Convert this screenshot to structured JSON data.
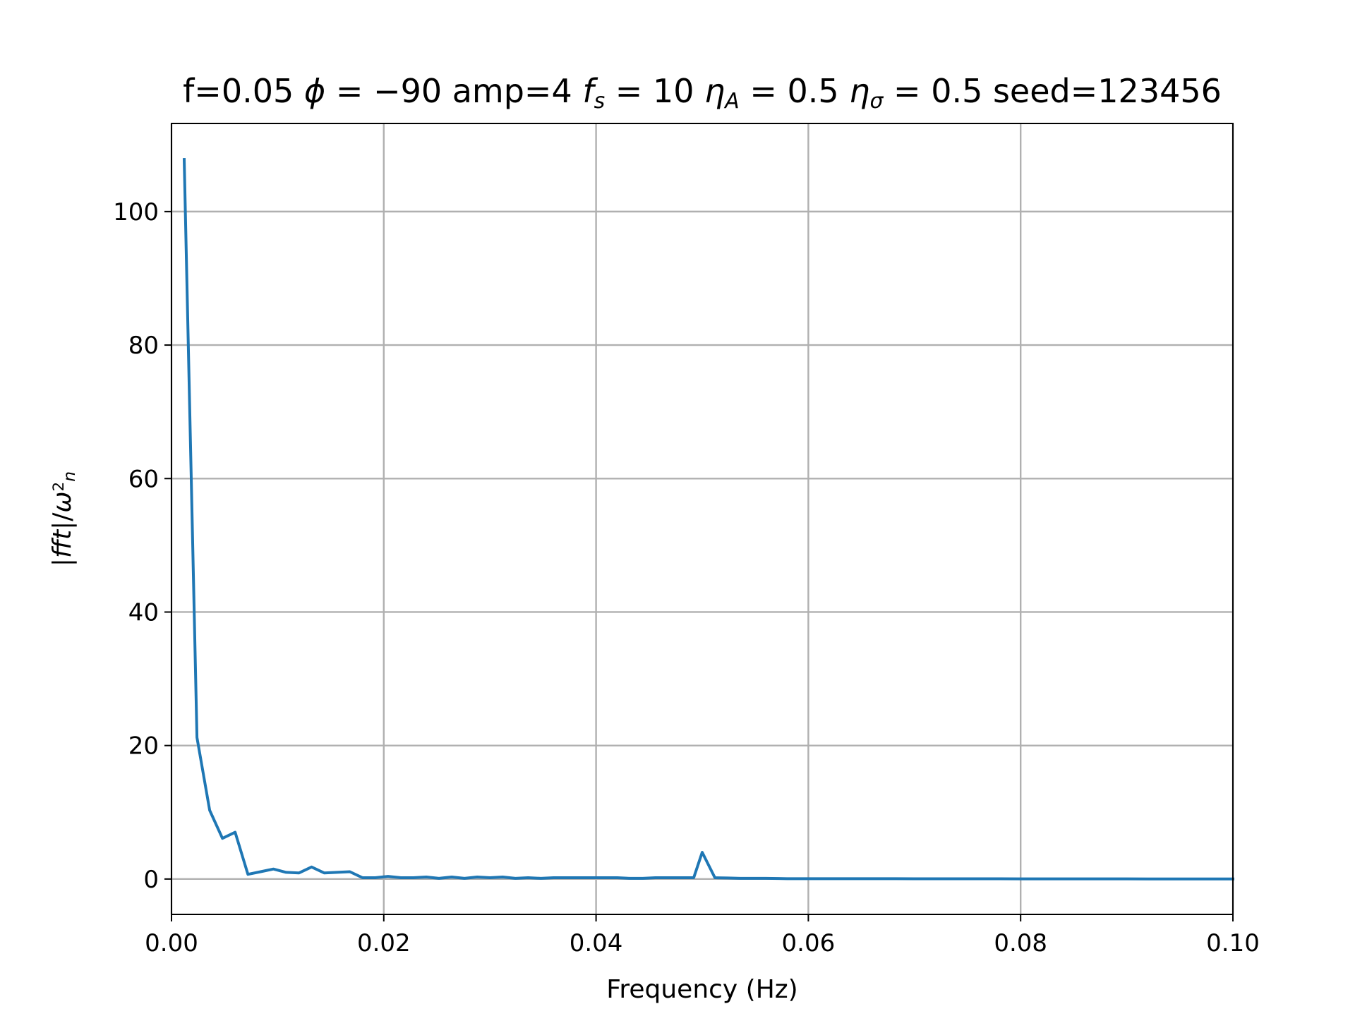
{
  "chart_data": {
    "type": "line",
    "title_segments": [
      {
        "text": "f=0.05 ",
        "style": "normal"
      },
      {
        "text": "ϕ",
        "style": "italic"
      },
      {
        "text": " = −90 amp=4 ",
        "style": "normal"
      },
      {
        "text": "f",
        "style": "italic"
      },
      {
        "text": "s",
        "style": "italic-sub"
      },
      {
        "text": " = 10 ",
        "style": "normal"
      },
      {
        "text": "η",
        "style": "italic"
      },
      {
        "text": "A",
        "style": "italic-sub"
      },
      {
        "text": " = 0.5 ",
        "style": "normal"
      },
      {
        "text": "η",
        "style": "italic"
      },
      {
        "text": "σ",
        "style": "italic-sub"
      },
      {
        "text": " = 0.5 seed=123456",
        "style": "normal"
      }
    ],
    "xlabel": "Frequency (Hz)",
    "ylabel_segments": [
      {
        "text": "|",
        "style": "normal"
      },
      {
        "text": "fft",
        "style": "italic"
      },
      {
        "text": "|/",
        "style": "normal"
      },
      {
        "text": "ω",
        "style": "italic"
      },
      {
        "text": "2",
        "style": "sup"
      },
      {
        "text": "n",
        "style": "italic-sub"
      }
    ],
    "xlim": [
      0.0,
      0.1
    ],
    "ylim": [
      -5.3,
      113.2
    ],
    "xticks": [
      0.0,
      0.02,
      0.04,
      0.06,
      0.08,
      0.1
    ],
    "xtick_labels": [
      "0.00",
      "0.02",
      "0.04",
      "0.06",
      "0.08",
      "0.10"
    ],
    "yticks": [
      0,
      20,
      40,
      60,
      80,
      100
    ],
    "ytick_labels": [
      "0",
      "20",
      "40",
      "60",
      "80",
      "100"
    ],
    "grid": true,
    "series": [
      {
        "color": "#1f77b4",
        "x": [
          0.0012,
          0.0024,
          0.0036,
          0.0048,
          0.006,
          0.0072,
          0.0084,
          0.0096,
          0.0108,
          0.012,
          0.0132,
          0.0144,
          0.0156,
          0.0168,
          0.018,
          0.0192,
          0.0204,
          0.0216,
          0.0228,
          0.024,
          0.0252,
          0.0264,
          0.0276,
          0.0288,
          0.03,
          0.0312,
          0.0324,
          0.0336,
          0.0348,
          0.036,
          0.0372,
          0.0384,
          0.0396,
          0.0408,
          0.042,
          0.0432,
          0.0444,
          0.0456,
          0.0468,
          0.048,
          0.0492,
          0.05,
          0.0512,
          0.0524,
          0.0536,
          0.0548,
          0.056,
          0.0572,
          0.058,
          0.06,
          0.062,
          0.064,
          0.066,
          0.068,
          0.07,
          0.072,
          0.074,
          0.076,
          0.078,
          0.08,
          0.082,
          0.084,
          0.086,
          0.088,
          0.09,
          0.092,
          0.094,
          0.096,
          0.098,
          0.1
        ],
        "y": [
          107.8,
          21.2,
          10.3,
          6.1,
          7.0,
          0.7,
          1.1,
          1.5,
          1.0,
          0.9,
          1.8,
          0.9,
          1.0,
          1.1,
          0.2,
          0.2,
          0.4,
          0.2,
          0.2,
          0.3,
          0.1,
          0.3,
          0.1,
          0.3,
          0.2,
          0.3,
          0.1,
          0.2,
          0.1,
          0.2,
          0.2,
          0.2,
          0.2,
          0.2,
          0.2,
          0.1,
          0.1,
          0.2,
          0.2,
          0.2,
          0.2,
          4.0,
          0.2,
          0.15,
          0.1,
          0.1,
          0.1,
          0.08,
          0.05,
          0.05,
          0.05,
          0.05,
          0.05,
          0.05,
          0.04,
          0.04,
          0.04,
          0.04,
          0.04,
          0.03,
          0.03,
          0.03,
          0.03,
          0.03,
          0.03,
          0.02,
          0.02,
          0.02,
          0.02,
          0.02
        ]
      }
    ]
  }
}
